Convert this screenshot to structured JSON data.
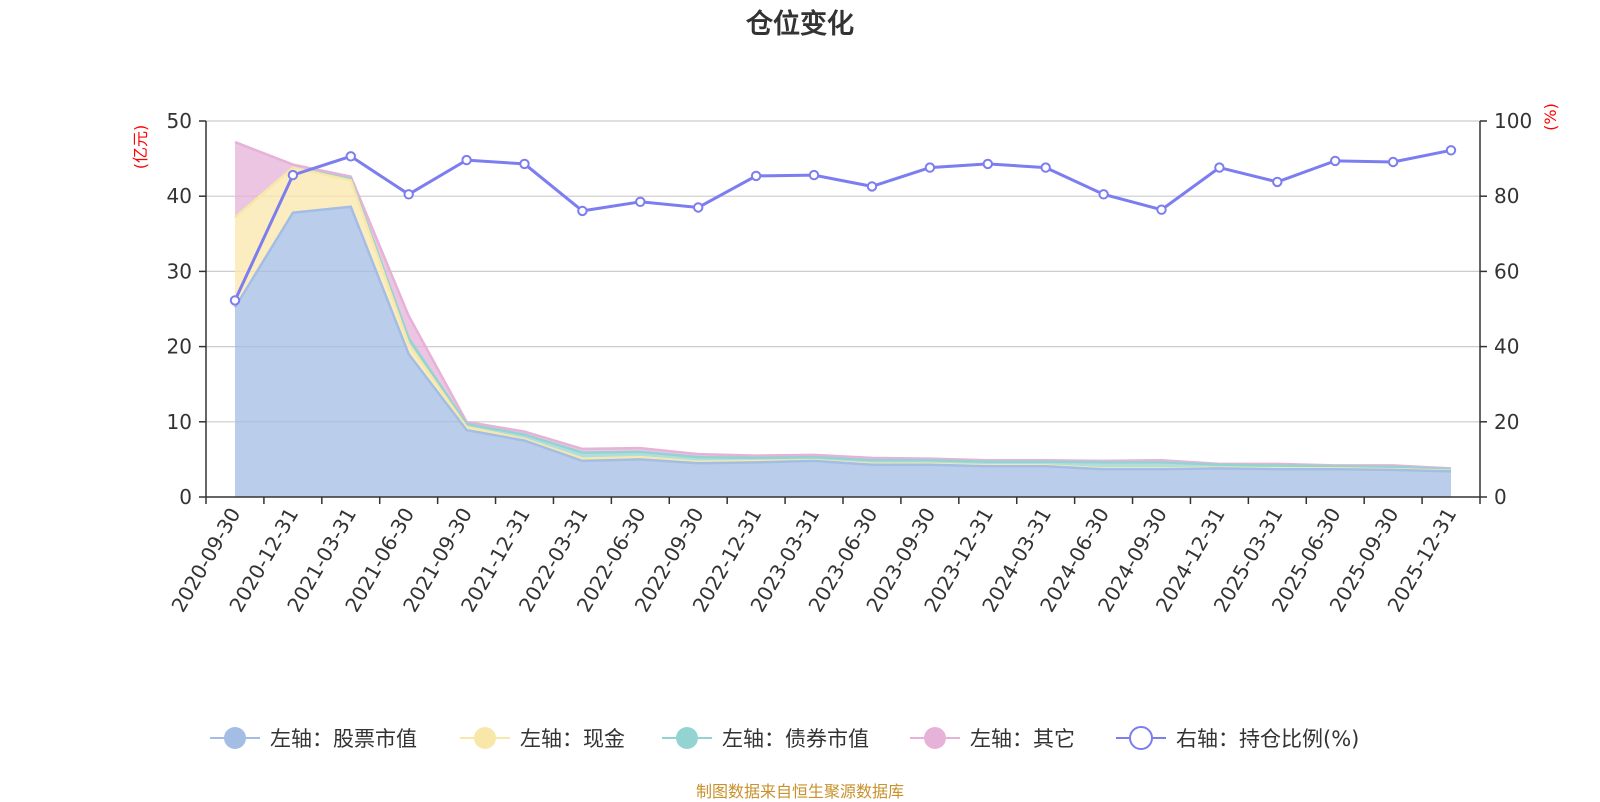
{
  "title": "仓位变化",
  "source_note": "制图数据来自恒生聚源数据库",
  "chart_data": {
    "type": "area",
    "title": "仓位变化",
    "x": [
      "2020-09-30",
      "2020-12-31",
      "2021-03-31",
      "2021-06-30",
      "2021-09-30",
      "2021-12-31",
      "2022-03-31",
      "2022-06-30",
      "2022-09-30",
      "2022-12-31",
      "2023-03-31",
      "2023-06-30",
      "2023-09-30",
      "2023-12-31",
      "2024-03-31",
      "2024-06-30",
      "2024-09-30",
      "2024-12-31",
      "2025-03-31",
      "2025-06-30",
      "2025-09-30",
      "2025-12-31"
    ],
    "left_axis": {
      "unit": "(亿元)",
      "ylim": [
        0,
        50
      ],
      "ticks": [
        0,
        10,
        20,
        30,
        40,
        50
      ]
    },
    "right_axis": {
      "unit": "(%)",
      "ylim": [
        0,
        100
      ],
      "ticks": [
        0,
        20,
        40,
        60,
        80,
        100
      ]
    },
    "grid": true,
    "legend_position": "bottom",
    "series": [
      {
        "name": "左轴：股票市值",
        "axis": "left",
        "stack": true,
        "color": "#a3bde4",
        "values": [
          25.2,
          37.8,
          38.6,
          19.0,
          8.9,
          7.5,
          4.8,
          5.0,
          4.5,
          4.6,
          4.8,
          4.3,
          4.3,
          4.1,
          4.1,
          3.7,
          3.7,
          3.8,
          3.7,
          3.7,
          3.6,
          3.4
        ]
      },
      {
        "name": "左轴：现金",
        "axis": "left",
        "stack": true,
        "color": "#f9e7a9",
        "values": [
          12.0,
          6.0,
          3.5,
          1.3,
          0.4,
          0.2,
          0.3,
          0.3,
          0.2,
          0.2,
          0.1,
          0.1,
          0.1,
          0.1,
          0.1,
          0.1,
          0.1,
          0.1,
          0.1,
          0.1,
          0.1,
          0.1
        ]
      },
      {
        "name": "左轴：债券市值",
        "axis": "left",
        "stack": true,
        "color": "#93d4d3",
        "values": [
          0.0,
          0.0,
          0.2,
          0.8,
          0.4,
          0.6,
          0.8,
          0.7,
          0.6,
          0.4,
          0.4,
          0.5,
          0.5,
          0.5,
          0.5,
          0.8,
          0.8,
          0.4,
          0.4,
          0.3,
          0.3,
          0.2
        ]
      },
      {
        "name": "左轴：其它",
        "axis": "left",
        "stack": true,
        "color": "#e6b2d8",
        "values": [
          10.0,
          0.4,
          0.3,
          3.0,
          0.3,
          0.4,
          0.5,
          0.5,
          0.4,
          0.3,
          0.3,
          0.3,
          0.2,
          0.2,
          0.2,
          0.2,
          0.3,
          0.1,
          0.2,
          0.1,
          0.2,
          0.1
        ]
      },
      {
        "name": "右轴：持仓比例(%)",
        "axis": "right",
        "type": "line",
        "color": "#7b7df0",
        "values": [
          52.3,
          85.6,
          90.6,
          80.5,
          89.6,
          88.6,
          76.1,
          78.5,
          77.0,
          85.4,
          85.6,
          82.6,
          87.6,
          88.6,
          87.6,
          80.5,
          76.4,
          87.6,
          83.8,
          89.4,
          89.1,
          92.2
        ]
      }
    ]
  }
}
